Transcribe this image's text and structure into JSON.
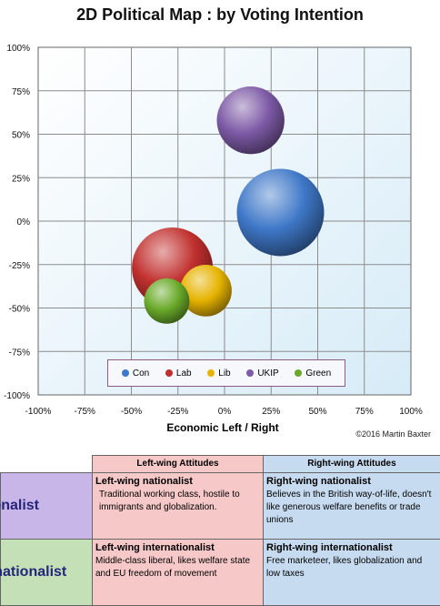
{
  "chart_data": {
    "type": "scatter",
    "title": "2D Political Map : by Voting Intention",
    "xlabel": "Economic Left / Right",
    "ylabel": "",
    "xlim": [
      -100,
      100
    ],
    "ylim": [
      -100,
      100
    ],
    "x_ticks": [
      "-100%",
      "-75%",
      "-50%",
      "-25%",
      "0%",
      "25%",
      "50%",
      "75%",
      "100%"
    ],
    "y_ticks": [
      "100%",
      "75%",
      "50%",
      "25%",
      "0%",
      "-25%",
      "-50%",
      "-75%",
      "-100%"
    ],
    "grid": true,
    "legend_placement": "bottom-center",
    "series": [
      {
        "name": "Con",
        "x": 30,
        "y": 5,
        "size": 1.0,
        "color": "#3f78c8"
      },
      {
        "name": "Lab",
        "x": -28,
        "y": -27,
        "size": 0.86,
        "color": "#c0302e"
      },
      {
        "name": "Lib",
        "x": -10,
        "y": -40,
        "size": 0.35,
        "color": "#e5b300"
      },
      {
        "name": "UKIP",
        "x": 14,
        "y": 58,
        "size": 0.6,
        "color": "#7d5aa6"
      },
      {
        "name": "Green",
        "x": -31,
        "y": -46,
        "size": 0.27,
        "color": "#6aaa2a"
      }
    ],
    "credit": "©2016 Martin Baxter"
  },
  "table": {
    "headers": {
      "left": "Left-wing Attitudes",
      "right": "Right-wing Attitudes"
    },
    "rows": [
      {
        "label": "ionalist",
        "left_title": "Left-wing nationalist",
        "left_text": "Traditional working class, hostile to immigrants and globalization.",
        "right_title": "Right-wing nationalist",
        "right_text": "Believes in the British way-of-life, doesn't like generous welfare benefits or trade unions"
      },
      {
        "label": "rnationalist",
        "left_title": "Left-wing internationalist",
        "left_text": "Middle-class liberal, likes welfare state and EU freedom of movement",
        "right_title": "Right-wing internationalist",
        "right_text": "Free marketeer, likes globalization and low taxes"
      }
    ]
  }
}
